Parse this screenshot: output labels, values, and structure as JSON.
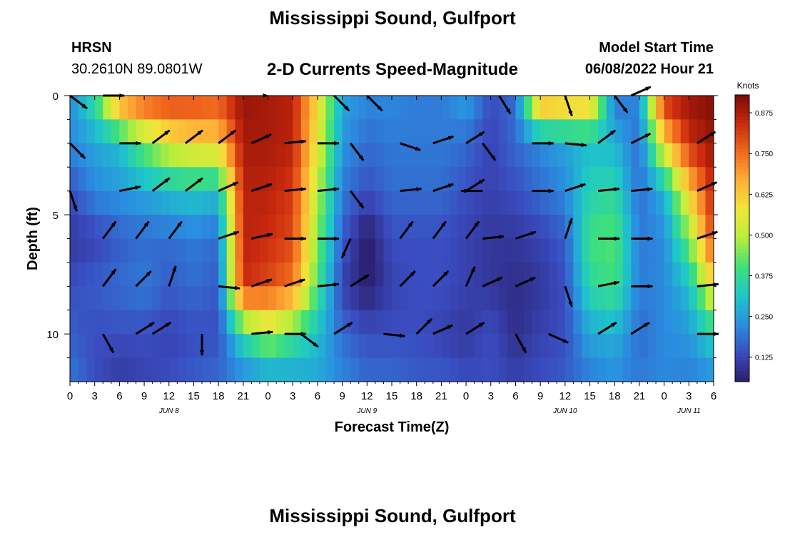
{
  "header": {
    "title": "Mississippi Sound, Gulfport",
    "station_code": "HRSN",
    "coordinates": "30.2610N  89.0801W",
    "product": "2-D Currents Speed-Magnitude",
    "model_start_label": "Model Start Time",
    "model_start_value": "06/08/2022 Hour 21"
  },
  "footer": {
    "repeated_title": "Mississippi Sound, Gulfport"
  },
  "colors": {
    "colormap": [
      "#2b1d6b",
      "#3a4cc0",
      "#2a8fe0",
      "#1ec8c8",
      "#3ee07a",
      "#b8ee3a",
      "#f0e63a",
      "#ffb037",
      "#f26b1e",
      "#c9290e",
      "#7a0a05"
    ],
    "arrow": "#000000"
  },
  "chart_data": {
    "type": "heatmap",
    "subtype": "time-depth current speed with direction vectors",
    "xlabel": "Forecast Time(Z)",
    "ylabel": "Depth (ft)",
    "x_unit": "hours from 00Z Jun 8",
    "xlim": [
      0,
      78
    ],
    "ylim": [
      0,
      12
    ],
    "y_inverted": true,
    "x_ticks": [
      0,
      3,
      6,
      9,
      12,
      15,
      18,
      21,
      24,
      27,
      30,
      33,
      36,
      39,
      42,
      45,
      48,
      51,
      54,
      57,
      60,
      63,
      66,
      69,
      72,
      75,
      78
    ],
    "x_tick_labels": [
      "0",
      "3",
      "6",
      "9",
      "12",
      "15",
      "18",
      "21",
      "0",
      "3",
      "6",
      "9",
      "12",
      "15",
      "18",
      "21",
      "0",
      "3",
      "6",
      "9",
      "12",
      "15",
      "18",
      "21",
      "0",
      "3",
      "6"
    ],
    "y_ticks": [
      0,
      5,
      10
    ],
    "y_tick_labels": [
      "0",
      "5",
      "10"
    ],
    "date_labels": [
      {
        "hour": 12,
        "label": "JUN 8"
      },
      {
        "hour": 36,
        "label": "JUN 9"
      },
      {
        "hour": 60,
        "label": "JUN 10"
      },
      {
        "hour": 75,
        "label": "JUN 11"
      }
    ],
    "colorbar": {
      "label": "Knots",
      "min": 0.05,
      "max": 0.93,
      "ticks": [
        0.125,
        0.25,
        0.375,
        0.5,
        0.625,
        0.75,
        0.875
      ],
      "tick_labels": [
        "0.125",
        "0.250",
        "0.375",
        "0.500",
        "0.625",
        "0.750",
        "0.875"
      ]
    },
    "time_hours": [
      0,
      3,
      6,
      9,
      12,
      15,
      18,
      21,
      24,
      27,
      30,
      33,
      36,
      39,
      42,
      45,
      48,
      51,
      54,
      57,
      60,
      63,
      66,
      69,
      72,
      75,
      78
    ],
    "depth_ft": [
      0,
      2,
      4,
      6,
      8,
      10,
      12
    ],
    "speed_knots": [
      [
        0.22,
        0.38,
        0.75,
        0.82,
        0.84,
        0.82,
        0.8,
        0.9,
        0.88,
        0.86,
        0.6,
        0.26,
        0.22,
        0.22,
        0.2,
        0.2,
        0.26,
        0.14,
        0.18,
        0.75,
        0.7,
        0.68,
        0.18,
        0.22,
        0.86,
        0.9,
        0.92
      ],
      [
        0.22,
        0.26,
        0.3,
        0.45,
        0.55,
        0.6,
        0.62,
        0.88,
        0.88,
        0.86,
        0.56,
        0.24,
        0.18,
        0.2,
        0.2,
        0.2,
        0.18,
        0.12,
        0.18,
        0.22,
        0.26,
        0.3,
        0.28,
        0.18,
        0.6,
        0.84,
        0.9
      ],
      [
        0.14,
        0.22,
        0.24,
        0.26,
        0.3,
        0.32,
        0.3,
        0.86,
        0.86,
        0.82,
        0.5,
        0.2,
        0.14,
        0.18,
        0.18,
        0.18,
        0.14,
        0.12,
        0.14,
        0.18,
        0.22,
        0.34,
        0.36,
        0.18,
        0.28,
        0.62,
        0.86
      ],
      [
        0.1,
        0.12,
        0.16,
        0.18,
        0.18,
        0.2,
        0.18,
        0.86,
        0.84,
        0.8,
        0.45,
        0.16,
        0.04,
        0.14,
        0.14,
        0.14,
        0.12,
        0.1,
        0.1,
        0.12,
        0.16,
        0.4,
        0.42,
        0.2,
        0.22,
        0.44,
        0.82
      ],
      [
        0.14,
        0.16,
        0.18,
        0.2,
        0.16,
        0.18,
        0.16,
        0.84,
        0.8,
        0.74,
        0.4,
        0.12,
        0.05,
        0.12,
        0.14,
        0.14,
        0.12,
        0.1,
        0.08,
        0.1,
        0.14,
        0.36,
        0.4,
        0.2,
        0.22,
        0.3,
        0.6
      ],
      [
        0.16,
        0.14,
        0.14,
        0.14,
        0.12,
        0.14,
        0.14,
        0.36,
        0.5,
        0.4,
        0.3,
        0.18,
        0.14,
        0.14,
        0.14,
        0.12,
        0.1,
        0.14,
        0.08,
        0.12,
        0.14,
        0.26,
        0.28,
        0.18,
        0.22,
        0.24,
        0.34
      ],
      [
        0.2,
        0.14,
        0.1,
        0.12,
        0.14,
        0.16,
        0.18,
        0.2,
        0.22,
        0.24,
        0.26,
        0.22,
        0.18,
        0.18,
        0.16,
        0.16,
        0.14,
        0.14,
        0.12,
        0.14,
        0.16,
        0.2,
        0.22,
        0.2,
        0.22,
        0.2,
        0.22
      ]
    ],
    "vectors": [
      {
        "t": 0,
        "d": 0,
        "u": 0.8,
        "v": -0.6
      },
      {
        "t": 4,
        "d": 0,
        "u": 1,
        "v": 0
      },
      {
        "t": 24,
        "d": 0,
        "u": 0,
        "v": 0
      },
      {
        "t": 32,
        "d": 0,
        "u": 0.7,
        "v": -0.7
      },
      {
        "t": 36,
        "d": 0,
        "u": 0.7,
        "v": -0.7
      },
      {
        "t": 52,
        "d": 0,
        "u": 0.5,
        "v": -0.8
      },
      {
        "t": 60,
        "d": 0,
        "u": 0.3,
        "v": -0.9
      },
      {
        "t": 66,
        "d": 0,
        "u": 0.6,
        "v": -0.8
      },
      {
        "t": 68,
        "d": 0,
        "u": 0.9,
        "v": 0.4
      },
      {
        "t": 0,
        "d": 2,
        "u": 0.7,
        "v": -0.7
      },
      {
        "t": 6,
        "d": 2,
        "u": 1,
        "v": 0
      },
      {
        "t": 10,
        "d": 2,
        "u": 0.8,
        "v": 0.6
      },
      {
        "t": 14,
        "d": 2,
        "u": 0.8,
        "v": 0.6
      },
      {
        "t": 18,
        "d": 2,
        "u": 0.8,
        "v": 0.6
      },
      {
        "t": 22,
        "d": 2,
        "u": 0.9,
        "v": 0.4
      },
      {
        "t": 26,
        "d": 2,
        "u": 1,
        "v": 0.1
      },
      {
        "t": 30,
        "d": 2,
        "u": 1,
        "v": 0
      },
      {
        "t": 34,
        "d": 2,
        "u": 0.6,
        "v": -0.8
      },
      {
        "t": 40,
        "d": 2,
        "u": 0.9,
        "v": -0.3
      },
      {
        "t": 44,
        "d": 2,
        "u": 0.9,
        "v": 0.3
      },
      {
        "t": 48,
        "d": 2,
        "u": 0.8,
        "v": 0.5
      },
      {
        "t": 50,
        "d": 2,
        "u": 0.6,
        "v": -0.8
      },
      {
        "t": 56,
        "d": 2,
        "u": 1,
        "v": 0
      },
      {
        "t": 60,
        "d": 2,
        "u": 1,
        "v": -0.1
      },
      {
        "t": 64,
        "d": 2,
        "u": 0.8,
        "v": 0.6
      },
      {
        "t": 68,
        "d": 2,
        "u": 0.8,
        "v": 0.4
      },
      {
        "t": 76,
        "d": 2,
        "u": 0.8,
        "v": 0.5
      },
      {
        "t": 0,
        "d": 4,
        "u": 0.3,
        "v": -0.9
      },
      {
        "t": 6,
        "d": 4,
        "u": 1,
        "v": 0.2
      },
      {
        "t": 10,
        "d": 4,
        "u": 0.8,
        "v": 0.6
      },
      {
        "t": 14,
        "d": 4,
        "u": 0.8,
        "v": 0.6
      },
      {
        "t": 18,
        "d": 4,
        "u": 0.9,
        "v": 0.4
      },
      {
        "t": 22,
        "d": 4,
        "u": 0.9,
        "v": 0.3
      },
      {
        "t": 26,
        "d": 4,
        "u": 1,
        "v": 0.1
      },
      {
        "t": 30,
        "d": 4,
        "u": 1,
        "v": 0.1
      },
      {
        "t": 34,
        "d": 4,
        "u": 0.6,
        "v": -0.8
      },
      {
        "t": 40,
        "d": 4,
        "u": 1,
        "v": 0.1
      },
      {
        "t": 44,
        "d": 4,
        "u": 0.9,
        "v": 0.3
      },
      {
        "t": 48,
        "d": 4,
        "u": 0.8,
        "v": 0.5
      },
      {
        "t": 50,
        "d": 4,
        "u": -1,
        "v": 0
      },
      {
        "t": 56,
        "d": 4,
        "u": 1,
        "v": 0
      },
      {
        "t": 60,
        "d": 4,
        "u": 0.9,
        "v": 0.3
      },
      {
        "t": 64,
        "d": 4,
        "u": 1,
        "v": 0.1
      },
      {
        "t": 68,
        "d": 4,
        "u": 1,
        "v": 0.1
      },
      {
        "t": 76,
        "d": 4,
        "u": 0.9,
        "v": 0.4
      },
      {
        "t": 4,
        "d": 6,
        "u": 0.6,
        "v": 0.8
      },
      {
        "t": 8,
        "d": 6,
        "u": 0.6,
        "v": 0.8
      },
      {
        "t": 12,
        "d": 6,
        "u": 0.6,
        "v": 0.8
      },
      {
        "t": 18,
        "d": 6,
        "u": 0.9,
        "v": 0.3
      },
      {
        "t": 22,
        "d": 6,
        "u": 0.9,
        "v": 0.2
      },
      {
        "t": 26,
        "d": 6,
        "u": 1,
        "v": 0
      },
      {
        "t": 30,
        "d": 6,
        "u": 1,
        "v": 0
      },
      {
        "t": 34,
        "d": 6,
        "u": -0.4,
        "v": -0.9
      },
      {
        "t": 40,
        "d": 6,
        "u": 0.6,
        "v": 0.8
      },
      {
        "t": 44,
        "d": 6,
        "u": 0.6,
        "v": 0.8
      },
      {
        "t": 48,
        "d": 6,
        "u": 0.6,
        "v": 0.8
      },
      {
        "t": 50,
        "d": 6,
        "u": 1,
        "v": 0.1
      },
      {
        "t": 54,
        "d": 6,
        "u": 0.9,
        "v": 0.3
      },
      {
        "t": 60,
        "d": 6,
        "u": 0.3,
        "v": 0.9
      },
      {
        "t": 64,
        "d": 6,
        "u": 1,
        "v": 0
      },
      {
        "t": 68,
        "d": 6,
        "u": 1,
        "v": 0
      },
      {
        "t": 76,
        "d": 6,
        "u": 0.9,
        "v": 0.3
      },
      {
        "t": 4,
        "d": 8,
        "u": 0.6,
        "v": 0.8
      },
      {
        "t": 8,
        "d": 8,
        "u": 0.7,
        "v": 0.7
      },
      {
        "t": 12,
        "d": 8,
        "u": 0.3,
        "v": 0.9
      },
      {
        "t": 18,
        "d": 8,
        "u": 1,
        "v": -0.1
      },
      {
        "t": 22,
        "d": 8,
        "u": 0.9,
        "v": 0.3
      },
      {
        "t": 26,
        "d": 8,
        "u": 0.9,
        "v": 0.3
      },
      {
        "t": 30,
        "d": 8,
        "u": 1,
        "v": 0.1
      },
      {
        "t": 34,
        "d": 8,
        "u": 0.8,
        "v": 0.5
      },
      {
        "t": 40,
        "d": 8,
        "u": 0.7,
        "v": 0.7
      },
      {
        "t": 44,
        "d": 8,
        "u": 0.7,
        "v": 0.7
      },
      {
        "t": 48,
        "d": 8,
        "u": 0.4,
        "v": 0.9
      },
      {
        "t": 50,
        "d": 8,
        "u": 0.9,
        "v": 0.4
      },
      {
        "t": 54,
        "d": 8,
        "u": 0.9,
        "v": 0.4
      },
      {
        "t": 60,
        "d": 8,
        "u": 0.3,
        "v": -0.9
      },
      {
        "t": 64,
        "d": 8,
        "u": 1,
        "v": 0.2
      },
      {
        "t": 68,
        "d": 8,
        "u": 1,
        "v": 0
      },
      {
        "t": 76,
        "d": 8,
        "u": 1,
        "v": 0.1
      },
      {
        "t": 4,
        "d": 10,
        "u": 0.5,
        "v": -0.9
      },
      {
        "t": 8,
        "d": 10,
        "u": 0.8,
        "v": 0.5
      },
      {
        "t": 10,
        "d": 10,
        "u": 0.8,
        "v": 0.5
      },
      {
        "t": 16,
        "d": 10,
        "u": 0,
        "v": -1
      },
      {
        "t": 22,
        "d": 10,
        "u": 1,
        "v": 0.1
      },
      {
        "t": 26,
        "d": 10,
        "u": 1,
        "v": 0
      },
      {
        "t": 28,
        "d": 10,
        "u": 0.8,
        "v": -0.6
      },
      {
        "t": 32,
        "d": 10,
        "u": 0.8,
        "v": 0.5
      },
      {
        "t": 38,
        "d": 10,
        "u": 1,
        "v": -0.1
      },
      {
        "t": 42,
        "d": 10,
        "u": 0.7,
        "v": 0.7
      },
      {
        "t": 44,
        "d": 10,
        "u": 0.9,
        "v": 0.4
      },
      {
        "t": 48,
        "d": 10,
        "u": 0.8,
        "v": 0.5
      },
      {
        "t": 54,
        "d": 10,
        "u": 0.5,
        "v": -0.9
      },
      {
        "t": 58,
        "d": 10,
        "u": 0.9,
        "v": -0.4
      },
      {
        "t": 64,
        "d": 10,
        "u": 0.8,
        "v": 0.5
      },
      {
        "t": 68,
        "d": 10,
        "u": 0.8,
        "v": 0.5
      },
      {
        "t": 76,
        "d": 10,
        "u": 1,
        "v": 0
      }
    ]
  }
}
